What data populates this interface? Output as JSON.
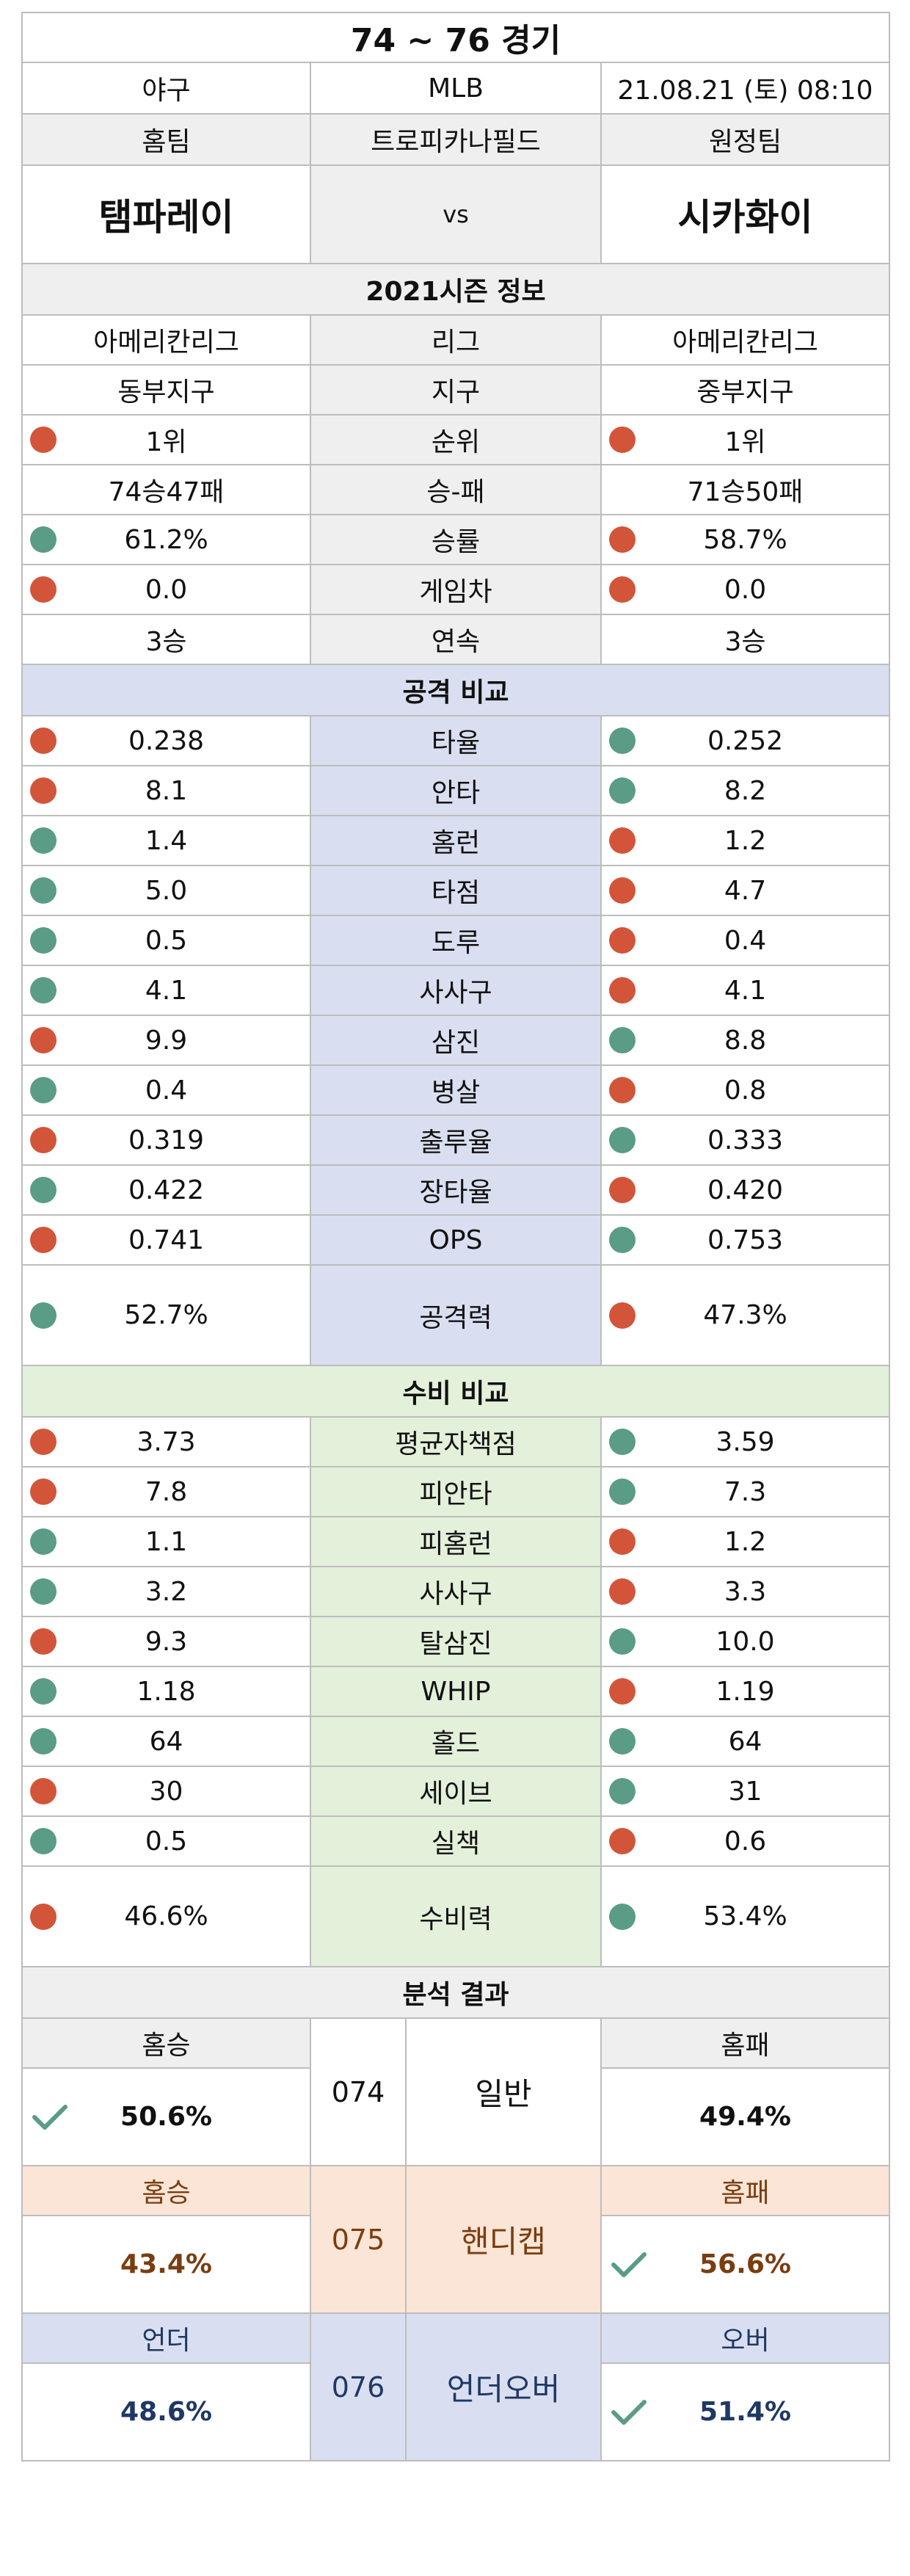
{
  "header": {
    "title": "74 ~ 76 경기",
    "sport": "야구",
    "league": "MLB",
    "datetime": "21.08.21 (토) 08:10",
    "home_label": "홈팀",
    "venue": "트로피카나필드",
    "away_label": "원정팀",
    "home_team": "탬파레이",
    "vs": "vs",
    "away_team": "시카화이"
  },
  "season": {
    "title": "2021시즌 정보",
    "rows": [
      {
        "home": "아메리칸리그",
        "label": "리그",
        "away": "아메리칸리그",
        "home_dot": "",
        "away_dot": ""
      },
      {
        "home": "동부지구",
        "label": "지구",
        "away": "중부지구",
        "home_dot": "",
        "away_dot": ""
      },
      {
        "home": "1위",
        "label": "순위",
        "away": "1위",
        "home_dot": "red",
        "away_dot": "red"
      },
      {
        "home": "74승47패",
        "label": "승-패",
        "away": "71승50패",
        "home_dot": "",
        "away_dot": ""
      },
      {
        "home": "61.2%",
        "label": "승률",
        "away": "58.7%",
        "home_dot": "green",
        "away_dot": "red"
      },
      {
        "home": "0.0",
        "label": "게임차",
        "away": "0.0",
        "home_dot": "red",
        "away_dot": "red"
      },
      {
        "home": "3승",
        "label": "연속",
        "away": "3승",
        "home_dot": "",
        "away_dot": ""
      }
    ]
  },
  "offense": {
    "title": "공격 비교",
    "rows": [
      {
        "home": "0.238",
        "label": "타율",
        "away": "0.252",
        "home_dot": "red",
        "away_dot": "green"
      },
      {
        "home": "8.1",
        "label": "안타",
        "away": "8.2",
        "home_dot": "red",
        "away_dot": "green"
      },
      {
        "home": "1.4",
        "label": "홈런",
        "away": "1.2",
        "home_dot": "green",
        "away_dot": "red"
      },
      {
        "home": "5.0",
        "label": "타점",
        "away": "4.7",
        "home_dot": "green",
        "away_dot": "red"
      },
      {
        "home": "0.5",
        "label": "도루",
        "away": "0.4",
        "home_dot": "green",
        "away_dot": "red"
      },
      {
        "home": "4.1",
        "label": "사사구",
        "away": "4.1",
        "home_dot": "green",
        "away_dot": "red"
      },
      {
        "home": "9.9",
        "label": "삼진",
        "away": "8.8",
        "home_dot": "red",
        "away_dot": "green"
      },
      {
        "home": "0.4",
        "label": "병살",
        "away": "0.8",
        "home_dot": "green",
        "away_dot": "red"
      },
      {
        "home": "0.319",
        "label": "출루율",
        "away": "0.333",
        "home_dot": "red",
        "away_dot": "green"
      },
      {
        "home": "0.422",
        "label": "장타율",
        "away": "0.420",
        "home_dot": "green",
        "away_dot": "red"
      },
      {
        "home": "0.741",
        "label": "OPS",
        "away": "0.753",
        "home_dot": "red",
        "away_dot": "green"
      }
    ],
    "power": {
      "home": "52.7%",
      "label": "공격력",
      "away": "47.3%",
      "home_dot": "green",
      "away_dot": "red"
    }
  },
  "defense": {
    "title": "수비 비교",
    "rows": [
      {
        "home": "3.73",
        "label": "평균자책점",
        "away": "3.59",
        "home_dot": "red",
        "away_dot": "green"
      },
      {
        "home": "7.8",
        "label": "피안타",
        "away": "7.3",
        "home_dot": "red",
        "away_dot": "green"
      },
      {
        "home": "1.1",
        "label": "피홈런",
        "away": "1.2",
        "home_dot": "green",
        "away_dot": "red"
      },
      {
        "home": "3.2",
        "label": "사사구",
        "away": "3.3",
        "home_dot": "green",
        "away_dot": "red"
      },
      {
        "home": "9.3",
        "label": "탈삼진",
        "away": "10.0",
        "home_dot": "red",
        "away_dot": "green"
      },
      {
        "home": "1.18",
        "label": "WHIP",
        "away": "1.19",
        "home_dot": "green",
        "away_dot": "red"
      },
      {
        "home": "64",
        "label": "홀드",
        "away": "64",
        "home_dot": "green",
        "away_dot": "green"
      },
      {
        "home": "30",
        "label": "세이브",
        "away": "31",
        "home_dot": "red",
        "away_dot": "green"
      },
      {
        "home": "0.5",
        "label": "실책",
        "away": "0.6",
        "home_dot": "green",
        "away_dot": "red"
      }
    ],
    "power": {
      "home": "46.6%",
      "label": "수비력",
      "away": "53.4%",
      "home_dot": "red",
      "away_dot": "green"
    }
  },
  "analysis": {
    "title": "분석 결과",
    "blocks": [
      {
        "left_label": "홈승",
        "left_value": "50.6%",
        "code": "074",
        "category": "일반",
        "right_label": "홈패",
        "right_value": "49.4%",
        "check": "left"
      },
      {
        "left_label": "홈승",
        "left_value": "43.4%",
        "code": "075",
        "category": "핸디캡",
        "right_label": "홈패",
        "right_value": "56.6%",
        "check": "right"
      },
      {
        "left_label": "언더",
        "left_value": "48.6%",
        "code": "076",
        "category": "언더오버",
        "right_label": "오버",
        "right_value": "51.4%",
        "check": "right"
      }
    ]
  },
  "colors": {
    "red_dot": "#d2553a",
    "green_dot": "#5a9c85",
    "check": "#5a9c85"
  }
}
